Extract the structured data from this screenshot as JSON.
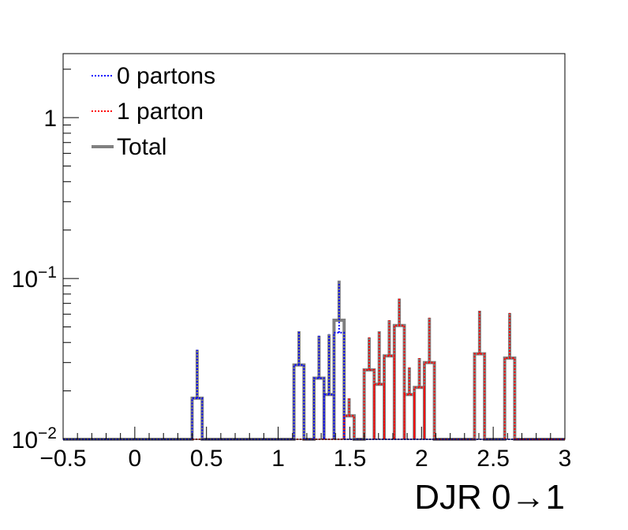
{
  "chart_data": {
    "type": "histogram",
    "xlabel": "DJR 0→1",
    "ylabel": "",
    "title": "",
    "xlim": [
      -0.5,
      3.0
    ],
    "ylim": [
      0.01,
      2.5
    ],
    "yscale": "log",
    "grid": false,
    "legend_position": "top-left",
    "x_ticks": [
      -0.5,
      0,
      0.5,
      1,
      1.5,
      2,
      2.5,
      3
    ],
    "x_tick_labels": [
      "−0.5",
      "0",
      "0.5",
      "1",
      "1.5",
      "2",
      "2.5",
      "3"
    ],
    "y_ticks": [
      0.01,
      0.1,
      1
    ],
    "y_tick_labels": [
      {
        "base": "10",
        "exp": "−2"
      },
      {
        "base": "10",
        "exp": "−1"
      },
      {
        "base": "1",
        "exp": ""
      }
    ],
    "bin_width": 0.07,
    "series": [
      {
        "name": "0 partons",
        "color": "#0000ff",
        "line_style": "dotted",
        "bins": [
          {
            "x0": 0.4,
            "x1": 0.47,
            "y": 0.018,
            "err_hi": 0.036
          },
          {
            "x0": 1.11,
            "x1": 1.18,
            "y": 0.029,
            "err_hi": 0.047
          },
          {
            "x0": 1.25,
            "x1": 1.32,
            "y": 0.024,
            "err_hi": 0.044
          },
          {
            "x0": 1.32,
            "x1": 1.39,
            "y": 0.019,
            "err_hi": 0.045
          },
          {
            "x0": 1.39,
            "x1": 1.46,
            "y": 0.046,
            "err_hi": 0.095
          }
        ]
      },
      {
        "name": "1 parton",
        "color": "#ff0000",
        "line_style": "dotted",
        "bins": [
          {
            "x0": 1.46,
            "x1": 1.53,
            "y": 0.014,
            "err_hi": 0.018
          },
          {
            "x0": 1.6,
            "x1": 1.67,
            "y": 0.027,
            "err_hi": 0.043
          },
          {
            "x0": 1.67,
            "x1": 1.74,
            "y": 0.022,
            "err_hi": 0.047
          },
          {
            "x0": 1.74,
            "x1": 1.81,
            "y": 0.033,
            "err_hi": 0.055
          },
          {
            "x0": 1.81,
            "x1": 1.88,
            "y": 0.051,
            "err_hi": 0.075
          },
          {
            "x0": 1.88,
            "x1": 1.95,
            "y": 0.019,
            "err_hi": 0.028
          },
          {
            "x0": 1.95,
            "x1": 2.02,
            "y": 0.021,
            "err_hi": 0.032
          },
          {
            "x0": 2.02,
            "x1": 2.09,
            "y": 0.03,
            "err_hi": 0.057
          },
          {
            "x0": 2.37,
            "x1": 2.44,
            "y": 0.034,
            "err_hi": 0.063
          },
          {
            "x0": 2.58,
            "x1": 2.65,
            "y": 0.032,
            "err_hi": 0.061
          }
        ]
      },
      {
        "name": "Total",
        "color": "#808080",
        "line_style": "solid",
        "bins": [
          {
            "x0": 0.4,
            "x1": 0.47,
            "y": 0.018,
            "err_hi": 0.036
          },
          {
            "x0": 1.11,
            "x1": 1.18,
            "y": 0.029,
            "err_hi": 0.047
          },
          {
            "x0": 1.25,
            "x1": 1.32,
            "y": 0.024,
            "err_hi": 0.044
          },
          {
            "x0": 1.32,
            "x1": 1.39,
            "y": 0.019,
            "err_hi": 0.045
          },
          {
            "x0": 1.39,
            "x1": 1.46,
            "y": 0.055,
            "err_hi": 0.097
          },
          {
            "x0": 1.46,
            "x1": 1.53,
            "y": 0.014,
            "err_hi": 0.018
          },
          {
            "x0": 1.6,
            "x1": 1.67,
            "y": 0.027,
            "err_hi": 0.043
          },
          {
            "x0": 1.67,
            "x1": 1.74,
            "y": 0.022,
            "err_hi": 0.047
          },
          {
            "x0": 1.74,
            "x1": 1.81,
            "y": 0.033,
            "err_hi": 0.055
          },
          {
            "x0": 1.81,
            "x1": 1.88,
            "y": 0.051,
            "err_hi": 0.075
          },
          {
            "x0": 1.88,
            "x1": 1.95,
            "y": 0.019,
            "err_hi": 0.028
          },
          {
            "x0": 1.95,
            "x1": 2.02,
            "y": 0.021,
            "err_hi": 0.032
          },
          {
            "x0": 2.02,
            "x1": 2.09,
            "y": 0.03,
            "err_hi": 0.057
          },
          {
            "x0": 2.37,
            "x1": 2.44,
            "y": 0.034,
            "err_hi": 0.063
          },
          {
            "x0": 2.58,
            "x1": 2.65,
            "y": 0.032,
            "err_hi": 0.061
          }
        ]
      }
    ]
  }
}
